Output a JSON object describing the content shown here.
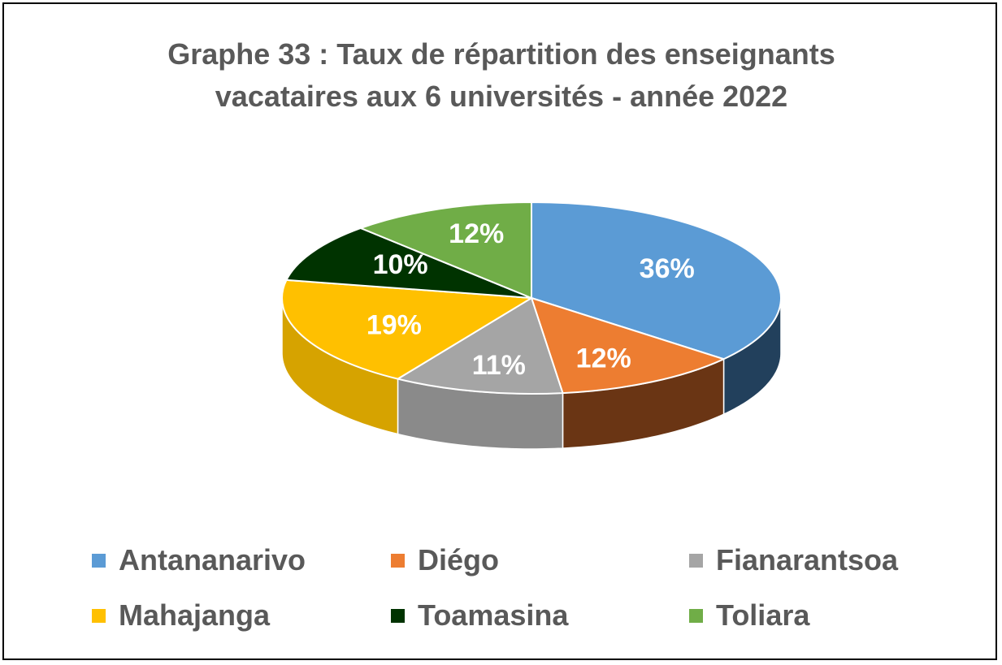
{
  "chart_data": {
    "type": "pie",
    "title_lines": [
      "Graphe 33 : Taux de répartition des enseignants",
      "vacataires aux 6 universités - année 2022"
    ],
    "slices": [
      {
        "label": "Antananarivo",
        "value": 36,
        "display": "36%",
        "color": "#5B9BD5",
        "side_color": "#22405C"
      },
      {
        "label": "Diégo",
        "value": 12,
        "display": "12%",
        "color": "#ED7D31",
        "side_color": "#6A3514"
      },
      {
        "label": "Fianarantsoa",
        "value": 11,
        "display": "11%",
        "color": "#A5A5A5",
        "side_color": "#8A8A8A"
      },
      {
        "label": "Mahajanga",
        "value": 19,
        "display": "19%",
        "color": "#FFC000",
        "side_color": "#D6A300"
      },
      {
        "label": "Toamasina",
        "value": 10,
        "display": "10%",
        "color": "#003300",
        "side_color": "#001A00"
      },
      {
        "label": "Toliara",
        "value": 12,
        "display": "12%",
        "color": "#70AD47",
        "side_color": "#4C7A30"
      }
    ],
    "legend_position": "bottom"
  }
}
